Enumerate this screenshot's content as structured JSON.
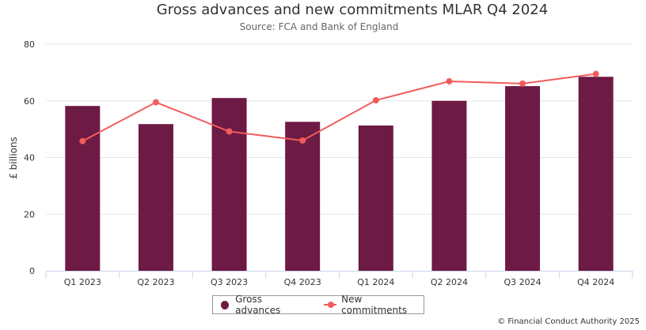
{
  "chart_data": {
    "type": "bar",
    "title": "Gross advances and new commitments MLAR Q4 2024",
    "subtitle": "Source: FCA and Bank of England",
    "xlabel": "",
    "ylabel": "£ billions",
    "ylim": [
      0,
      80
    ],
    "yticks": [
      "0",
      "20",
      "40",
      "60",
      "80"
    ],
    "grid": true,
    "legend_placement": "bottom-center",
    "categories": [
      "Q1 2023",
      "Q2 2023",
      "Q3 2023",
      "Q4 2023",
      "Q1 2024",
      "Q2 2024",
      "Q3 2024",
      "Q4 2024"
    ],
    "series": [
      {
        "name": "Gross advances",
        "type": "bar",
        "color": "#6d1a44",
        "values": [
          58.2,
          51.8,
          61.0,
          52.6,
          51.3,
          60.0,
          65.2,
          68.5
        ]
      },
      {
        "name": "New commitments",
        "type": "line",
        "color": "#f25c5c",
        "values": [
          45.8,
          59.5,
          49.2,
          46.0,
          60.2,
          66.9,
          66.1,
          69.5
        ]
      }
    ]
  },
  "credit": "© Financial Conduct Authority 2025"
}
